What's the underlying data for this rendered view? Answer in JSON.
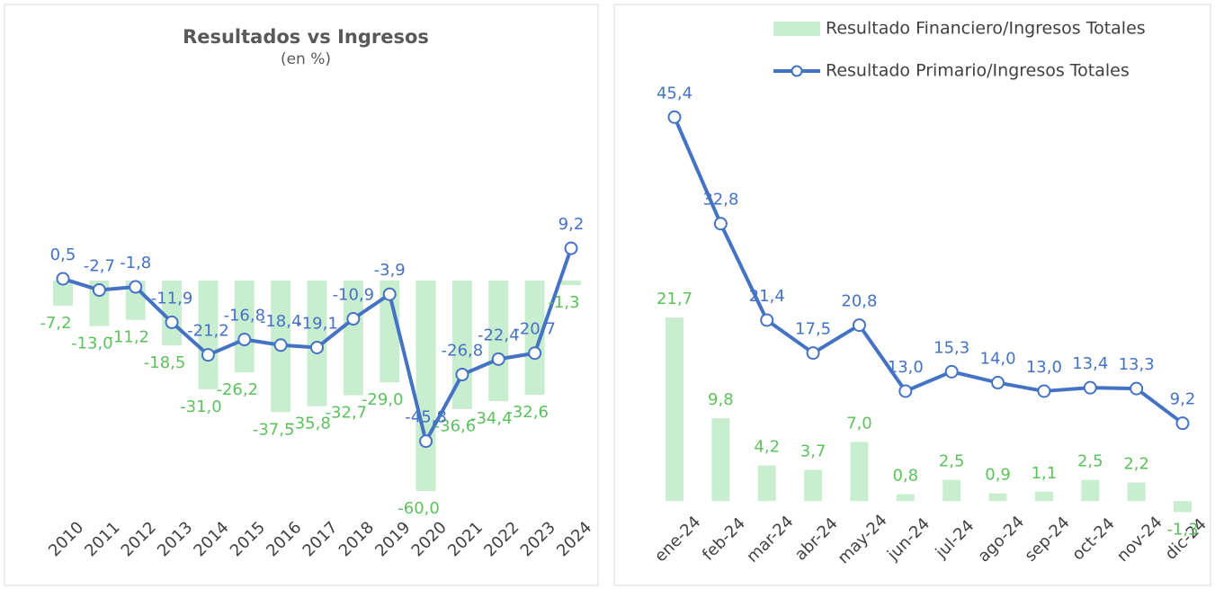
{
  "chart_data": [
    {
      "type": "bar_line",
      "title": "Resultados vs Ingresos",
      "subtitle": "(en %)",
      "categories": [
        "2010",
        "2011",
        "2012",
        "2013",
        "2014",
        "2015",
        "2016",
        "2017",
        "2018",
        "2019",
        "2020",
        "2021",
        "2022",
        "2023",
        "2024"
      ],
      "series": [
        {
          "type": "bar",
          "color": "#c8eecf",
          "label_color": "#5dc15d",
          "values": [
            -7.2,
            -13.0,
            -11.2,
            -18.5,
            -31.0,
            -26.2,
            -37.5,
            -35.8,
            -32.7,
            -29.0,
            -60.0,
            -36.6,
            -34.4,
            -32.6,
            -1.3
          ],
          "value_labels": [
            "-7,2",
            "-13,0",
            "-11,2",
            "-18,5",
            "-31,0",
            "-26,2",
            "-37,5",
            "-35,8",
            "-32,7",
            "-29,0",
            "-60,0",
            "-36,6",
            "-34,4",
            "-32,6",
            "-1,3"
          ]
        },
        {
          "type": "line",
          "color": "#4472c4",
          "label_color": "#4472c4",
          "values": [
            0.5,
            -2.7,
            -1.8,
            -11.9,
            -21.2,
            -16.8,
            -18.4,
            -19.1,
            -10.9,
            -3.9,
            -45.8,
            -26.8,
            -22.4,
            -20.7,
            9.2
          ],
          "value_labels": [
            "0,5",
            "-2,7",
            "-1,8",
            "-11,9",
            "-21,2",
            "-16,8",
            "-18,4",
            "-19,1",
            "-10,9",
            "-3,9",
            "-45,8",
            "-26,8",
            "-22,4",
            "-20,7",
            "9,2"
          ]
        }
      ],
      "ylim": [
        -64,
        40
      ]
    },
    {
      "type": "bar_line",
      "legend": true,
      "categories": [
        "ene-24",
        "feb-24",
        "mar-24",
        "abr-24",
        "may-24",
        "jun-24",
        "jul-24",
        "ago-24",
        "sep-24",
        "oct-24",
        "nov-24",
        "dic-24"
      ],
      "series": [
        {
          "type": "bar",
          "name": "Resultado Financiero/Ingresos Totales",
          "color": "#c8eecf",
          "label_color": "#5dc15d",
          "values": [
            21.7,
            9.8,
            4.2,
            3.7,
            7.0,
            0.8,
            2.5,
            0.9,
            1.1,
            2.5,
            2.2,
            -1.3
          ],
          "value_labels": [
            "21,7",
            "9,8",
            "4,2",
            "3,7",
            "7,0",
            "0,8",
            "2,5",
            "0,9",
            "1,1",
            "2,5",
            "2,2",
            "-1,3"
          ]
        },
        {
          "type": "line",
          "name": "Resultado Primario/Ingresos Totales",
          "color": "#4472c4",
          "label_color": "#4472c4",
          "values": [
            45.4,
            32.8,
            21.4,
            17.5,
            20.8,
            13.0,
            15.3,
            14.0,
            13.0,
            13.4,
            13.3,
            9.2
          ],
          "value_labels": [
            "45,4",
            "32,8",
            "21,4",
            "17,5",
            "20,8",
            "13,0",
            "15,3",
            "14,0",
            "13,0",
            "13,4",
            "13,3",
            "9,2"
          ]
        }
      ],
      "ylim": [
        -2,
        50
      ]
    }
  ]
}
